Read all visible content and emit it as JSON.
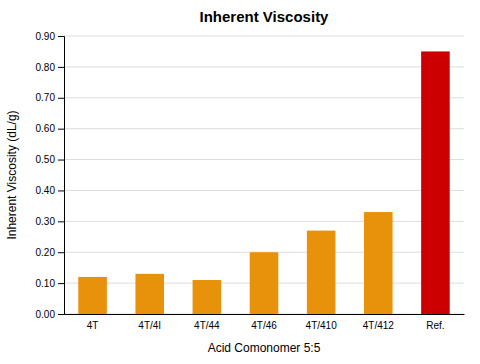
{
  "chart_data": {
    "type": "bar",
    "title": "Inherent Viscosity",
    "xlabel": "Acid Comonomer 5:5",
    "ylabel": "Inherent Viscosity (dL/g)",
    "categories": [
      "4T",
      "4T/4I",
      "4T/44",
      "4T/46",
      "4T/410",
      "4T/412",
      "Ref."
    ],
    "values": [
      0.12,
      0.13,
      0.11,
      0.2,
      0.27,
      0.33,
      0.85
    ],
    "colors": [
      "#E8910A",
      "#E8910A",
      "#E8910A",
      "#E8910A",
      "#E8910A",
      "#E8910A",
      "#CC0000"
    ],
    "ylim": [
      0.0,
      0.9
    ],
    "yticks": [
      {
        "value": 0.0,
        "label": "0.00"
      },
      {
        "value": 0.1,
        "label": "0.10"
      },
      {
        "value": 0.2,
        "label": "0.20"
      },
      {
        "value": 0.3,
        "label": "0.30"
      },
      {
        "value": 0.4,
        "label": "0.40"
      },
      {
        "value": 0.5,
        "label": "0.50"
      },
      {
        "value": 0.6,
        "label": "0.60"
      },
      {
        "value": 0.7,
        "label": "0.70"
      },
      {
        "value": 0.8,
        "label": "0.80"
      },
      {
        "value": 0.9,
        "label": "0.90"
      }
    ],
    "grid": true
  }
}
